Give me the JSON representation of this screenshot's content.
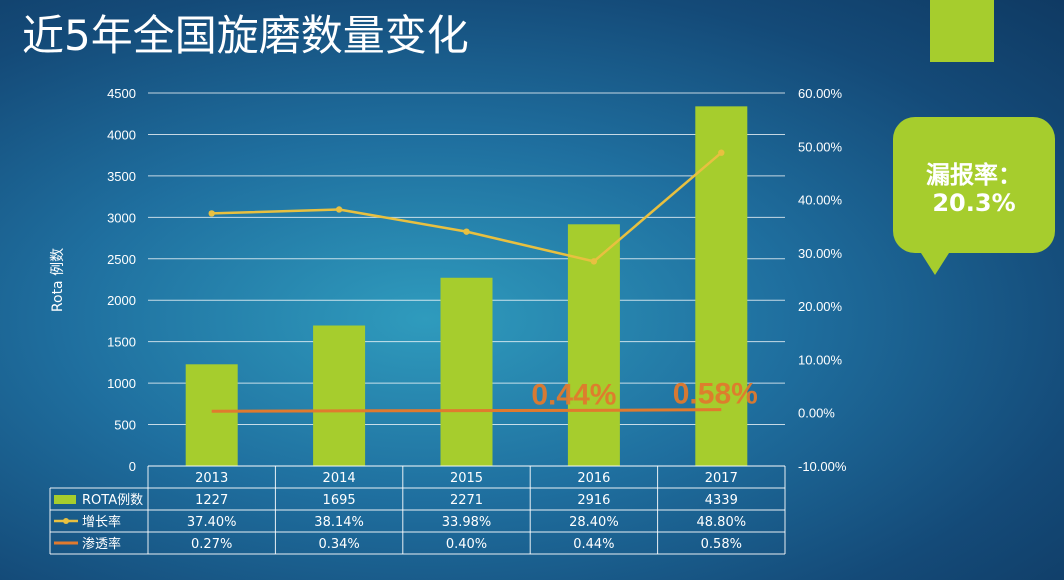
{
  "title": "近5年全国旋磨数量变化",
  "callout": {
    "line1": "漏报率：",
    "line2": "20.3%"
  },
  "colors": {
    "bar": "#a6cd2d",
    "growth_line": "#e8c040",
    "penetration_line": "#e07a2e",
    "accent": "#a6cd2d"
  },
  "chart_data": {
    "type": "bar",
    "categories": [
      "2013",
      "2014",
      "2015",
      "2016",
      "2017"
    ],
    "ylabel": "Rota 例数",
    "ylim": [
      0,
      4500
    ],
    "yticks": [
      "0",
      "500",
      "1000",
      "1500",
      "2000",
      "2500",
      "3000",
      "3500",
      "4000",
      "4500"
    ],
    "y2lim": [
      -10,
      60
    ],
    "y2ticks": [
      "-10.00%",
      "0.00%",
      "10.00%",
      "20.00%",
      "30.00%",
      "40.00%",
      "50.00%",
      "60.00%"
    ],
    "grid": true,
    "series": [
      {
        "name": "ROTA例数",
        "type": "bar",
        "axis": "left",
        "values": [
          1227,
          1695,
          2271,
          2916,
          4339
        ],
        "labels": [
          "1227",
          "1695",
          "2271",
          "2916",
          "4339"
        ]
      },
      {
        "name": "增长率",
        "type": "line",
        "axis": "right",
        "values": [
          37.4,
          38.14,
          33.98,
          28.4,
          48.8
        ],
        "labels": [
          "37.40%",
          "38.14%",
          "33.98%",
          "28.40%",
          "48.80%"
        ]
      },
      {
        "name": "渗透率",
        "type": "line",
        "axis": "right",
        "values": [
          0.27,
          0.34,
          0.4,
          0.44,
          0.58
        ],
        "labels": [
          "0.27%",
          "0.34%",
          "0.40%",
          "0.44%",
          "0.58%"
        ]
      }
    ],
    "annotations": [
      {
        "text": "0.44%",
        "category": "2016",
        "series": "渗透率"
      },
      {
        "text": "0.58%",
        "category": "2017",
        "series": "渗透率"
      }
    ]
  }
}
